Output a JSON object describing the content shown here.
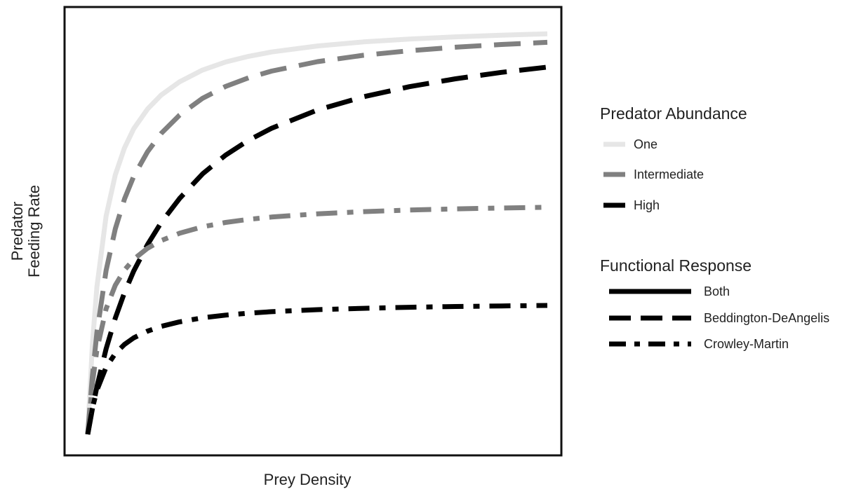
{
  "chart_data": {
    "type": "line",
    "xlabel": "Prey Density",
    "ylabel": [
      "Predator",
      "Feeding Rate"
    ],
    "x": [
      0,
      0.01,
      0.02,
      0.04,
      0.06,
      0.08,
      0.1,
      0.13,
      0.16,
      0.2,
      0.25,
      0.3,
      0.35,
      0.4,
      0.5,
      0.6,
      0.7,
      0.8,
      0.9,
      1.0
    ],
    "series": [
      {
        "abundance": "One",
        "response": "Both",
        "values": [
          0,
          0.2127,
          0.3509,
          0.5192,
          0.6173,
          0.6815,
          0.7269,
          0.7739,
          0.8074,
          0.8389,
          0.8669,
          0.8858,
          0.8993,
          0.9096,
          0.924,
          0.9336,
          0.9404,
          0.9456,
          0.9496,
          0.9528
        ]
      },
      {
        "abundance": "Intermediate",
        "response": "Beddington-DeAngelis",
        "values": [
          0,
          0.1379,
          0.2424,
          0.3899,
          0.4888,
          0.5599,
          0.6136,
          0.6722,
          0.7161,
          0.7596,
          0.7997,
          0.8277,
          0.8483,
          0.8641,
          0.8866,
          0.9018,
          0.9127,
          0.921,
          0.9275,
          0.9327
        ]
      },
      {
        "abundance": "High",
        "response": "Beddington-DeAngelis",
        "values": [
          0,
          0.06,
          0.1132,
          0.2034,
          0.2765,
          0.3371,
          0.3883,
          0.4514,
          0.5041,
          0.5614,
          0.6198,
          0.6644,
          0.6996,
          0.7282,
          0.7716,
          0.8031,
          0.8271,
          0.8459,
          0.8611,
          0.8736
        ]
      },
      {
        "abundance": "Intermediate",
        "response": "Crowley-Martin",
        "values": [
          0,
          0.1209,
          0.2013,
          0.2986,
          0.3546,
          0.3909,
          0.4164,
          0.4427,
          0.4612,
          0.4785,
          0.4939,
          0.5041,
          0.5115,
          0.517,
          0.5247,
          0.5299,
          0.5336,
          0.5364,
          0.5385,
          0.5402
        ]
      },
      {
        "abundance": "High",
        "response": "Crowley-Martin",
        "values": [
          0,
          0.0617,
          0.105,
          0.1596,
          0.1924,
          0.214,
          0.2295,
          0.2455,
          0.257,
          0.2677,
          0.2773,
          0.2837,
          0.2883,
          0.2918,
          0.2967,
          0.2999,
          0.3023,
          0.3041,
          0.3055,
          0.3066
        ]
      }
    ],
    "grid": false,
    "legend": {
      "placement": "right",
      "groups": [
        {
          "title": "Predator Abundance",
          "items": [
            {
              "label": "One",
              "color": "#e6e6e6"
            },
            {
              "label": "Intermediate",
              "color": "#808080"
            },
            {
              "label": "High",
              "color": "#000000"
            }
          ]
        },
        {
          "title": "Functional Response",
          "items": [
            {
              "label": "Both",
              "dash": "solid"
            },
            {
              "label": "Beddington-DeAngelis",
              "dash": "dashed"
            },
            {
              "label": "Crowley-Martin",
              "dash": "dashdot"
            }
          ]
        }
      ]
    }
  },
  "colors": {
    "one": "#e6e6e6",
    "intermediate": "#808080",
    "high": "#000000"
  }
}
